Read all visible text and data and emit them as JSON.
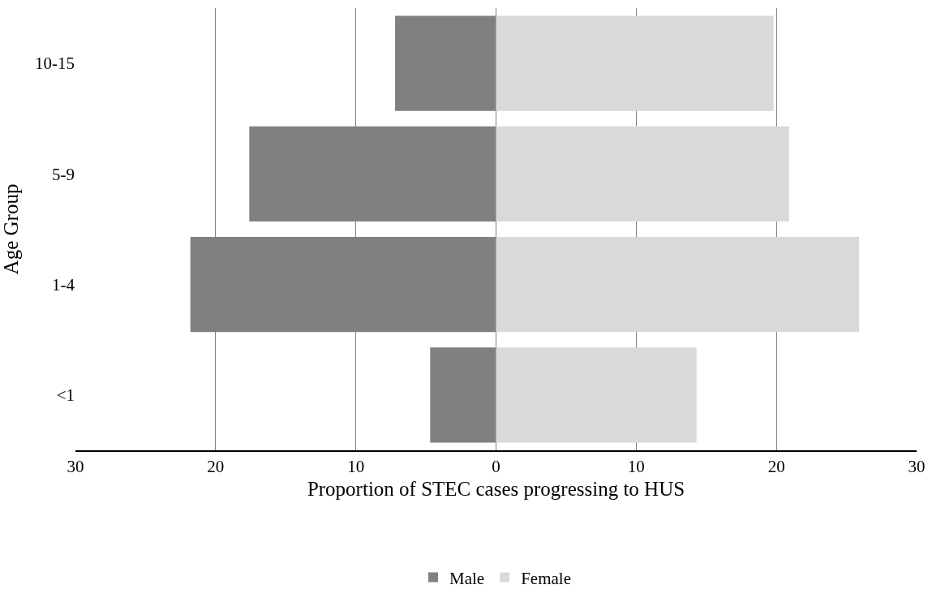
{
  "chart_data": {
    "type": "bar",
    "orientation": "horizontal",
    "stacked": true,
    "xlabel": "Proportion of STEC cases progressing to HUS",
    "ylabel": "Age Group",
    "categories": [
      "10-15",
      "5-9",
      "1-4",
      "<1"
    ],
    "series": [
      {
        "name": "Male",
        "color": "#808080",
        "values": [
          -7.2,
          -17.6,
          -21.8,
          -4.7
        ]
      },
      {
        "name": "Female",
        "color": "#d9d9d9",
        "values": [
          19.8,
          20.9,
          25.9,
          14.3
        ]
      }
    ],
    "xlim": [
      -30,
      30
    ],
    "xticks": [
      {
        "value": -30,
        "label": "30"
      },
      {
        "value": -20,
        "label": "20"
      },
      {
        "value": -10,
        "label": "10"
      },
      0,
      10,
      20,
      30
    ],
    "grid": "x",
    "legend": "bottom"
  }
}
